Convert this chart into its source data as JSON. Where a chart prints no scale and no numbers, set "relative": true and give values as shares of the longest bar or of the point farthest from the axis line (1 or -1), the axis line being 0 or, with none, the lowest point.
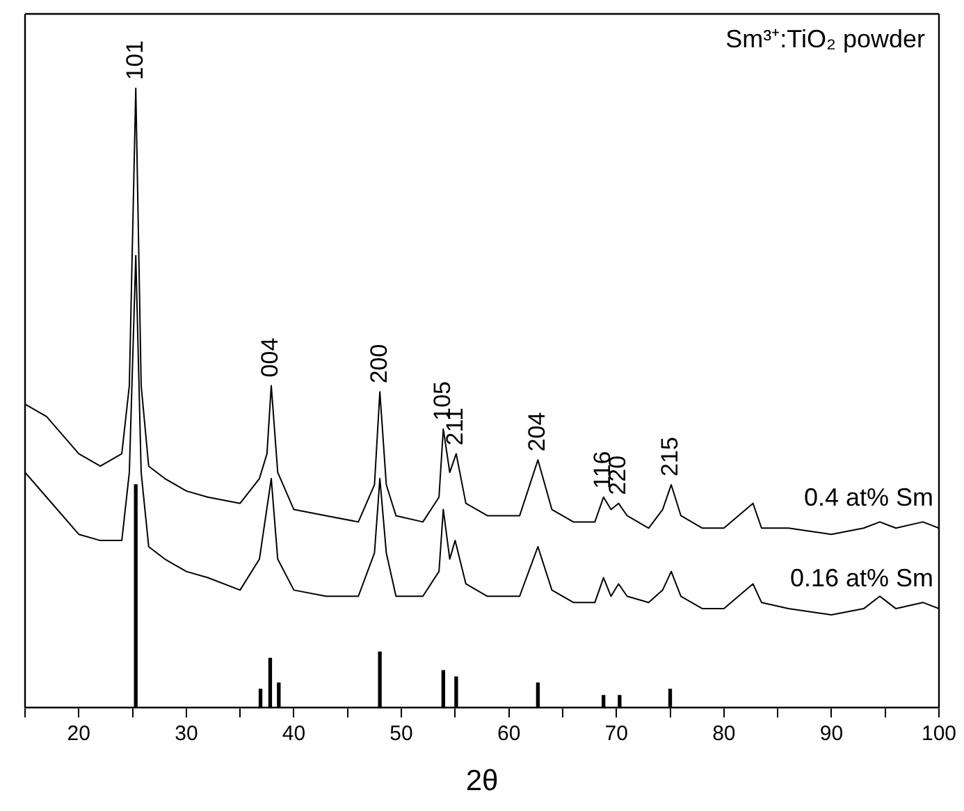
{
  "chart_data": {
    "type": "line",
    "title": "Sm³⁺:TiO₂ powder",
    "xlabel": "2θ",
    "relative": true,
    "xlim": [
      15,
      100
    ],
    "xticks": [
      {
        "value": 15,
        "label": null
      },
      20,
      {
        "value": 25,
        "label": null
      },
      30,
      {
        "value": 35,
        "label": null
      },
      40,
      {
        "value": 45,
        "label": null
      },
      50,
      {
        "value": 55,
        "label": null
      },
      60,
      {
        "value": 65,
        "label": null
      },
      70,
      {
        "value": 75,
        "label": null
      },
      80,
      {
        "value": 85,
        "label": null
      },
      90,
      {
        "value": 95,
        "label": null
      },
      100
    ],
    "tick_labels": "x",
    "legend": false,
    "grid": false,
    "marker": "none",
    "line_style": "solid",
    "series": [
      {
        "name": "0.4 at% Sm",
        "color": "#000000",
        "x": [
          15,
          17,
          20,
          22,
          24,
          24.7,
          25.3,
          25.8,
          26.5,
          28,
          30,
          32,
          35,
          36.8,
          37.5,
          37.9,
          38.5,
          40,
          43,
          46,
          47.5,
          48,
          48.6,
          49.5,
          52,
          53.5,
          53.9,
          54.5,
          55.1,
          56,
          58,
          61,
          62.7,
          64,
          66,
          68,
          68.8,
          69.5,
          70.2,
          71,
          73,
          74.3,
          75.1,
          76,
          78,
          80,
          82.7,
          83.5,
          86,
          90,
          93,
          94.5,
          96,
          98.5,
          100
        ],
        "values": [
          0.49,
          0.47,
          0.41,
          0.39,
          0.41,
          0.52,
          1.0,
          0.52,
          0.39,
          0.37,
          0.35,
          0.34,
          0.33,
          0.37,
          0.41,
          0.52,
          0.38,
          0.32,
          0.31,
          0.3,
          0.36,
          0.51,
          0.36,
          0.31,
          0.3,
          0.34,
          0.45,
          0.38,
          0.41,
          0.33,
          0.31,
          0.31,
          0.4,
          0.32,
          0.3,
          0.3,
          0.34,
          0.32,
          0.33,
          0.31,
          0.29,
          0.32,
          0.36,
          0.31,
          0.29,
          0.29,
          0.33,
          0.29,
          0.29,
          0.28,
          0.29,
          0.3,
          0.29,
          0.3,
          0.29
        ]
      },
      {
        "name": "0.16 at% Sm",
        "color": "#000000",
        "x": [
          15,
          17,
          20,
          22,
          24,
          24.7,
          25.3,
          25.8,
          26.5,
          28,
          30,
          32,
          35,
          36.8,
          37.9,
          38.5,
          40,
          43,
          46,
          47.5,
          48,
          48.6,
          49.5,
          52,
          53.5,
          53.9,
          54.5,
          55,
          56,
          58,
          61,
          62.7,
          64,
          66,
          68,
          68.8,
          69.5,
          70.2,
          71,
          73,
          74.3,
          75.1,
          76,
          78,
          80,
          82.7,
          83.5,
          86,
          90,
          93,
          94.5,
          96,
          98.5,
          100
        ],
        "values": [
          0.38,
          0.34,
          0.28,
          0.27,
          0.27,
          0.38,
          0.73,
          0.38,
          0.26,
          0.24,
          0.22,
          0.21,
          0.19,
          0.24,
          0.37,
          0.24,
          0.19,
          0.18,
          0.18,
          0.25,
          0.37,
          0.25,
          0.18,
          0.18,
          0.22,
          0.32,
          0.24,
          0.27,
          0.2,
          0.18,
          0.18,
          0.26,
          0.19,
          0.17,
          0.17,
          0.21,
          0.18,
          0.2,
          0.18,
          0.17,
          0.19,
          0.22,
          0.18,
          0.16,
          0.16,
          0.2,
          0.17,
          0.16,
          0.15,
          0.16,
          0.18,
          0.16,
          0.17,
          0.16
        ]
      },
      {
        "type": "bar",
        "color": "#000000",
        "x": [
          25.3,
          36.9,
          37.8,
          38.6,
          48.0,
          53.9,
          55.1,
          62.7,
          68.8,
          70.3,
          75.0
        ],
        "values": [
          0.36,
          0.03,
          0.08,
          0.04,
          0.09,
          0.06,
          0.05,
          0.04,
          0.02,
          0.02,
          0.03
        ]
      }
    ],
    "annotations": [
      {
        "text": "101",
        "x": 25.3,
        "y": 1.0
      },
      {
        "text": "004",
        "x": 37.9,
        "y": 0.52
      },
      {
        "text": "200",
        "x": 48,
        "y": 0.51
      },
      {
        "text": "105",
        "x": 53.9,
        "y": 0.45
      },
      {
        "text": "211",
        "x": 55.1,
        "y": 0.41
      },
      {
        "text": "204",
        "x": 62.7,
        "y": 0.4
      },
      {
        "text": "116",
        "x": 68.8,
        "y": 0.34
      },
      {
        "text": "220",
        "x": 70.2,
        "y": 0.33
      },
      {
        "text": "215",
        "x": 75.1,
        "y": 0.36
      }
    ]
  }
}
